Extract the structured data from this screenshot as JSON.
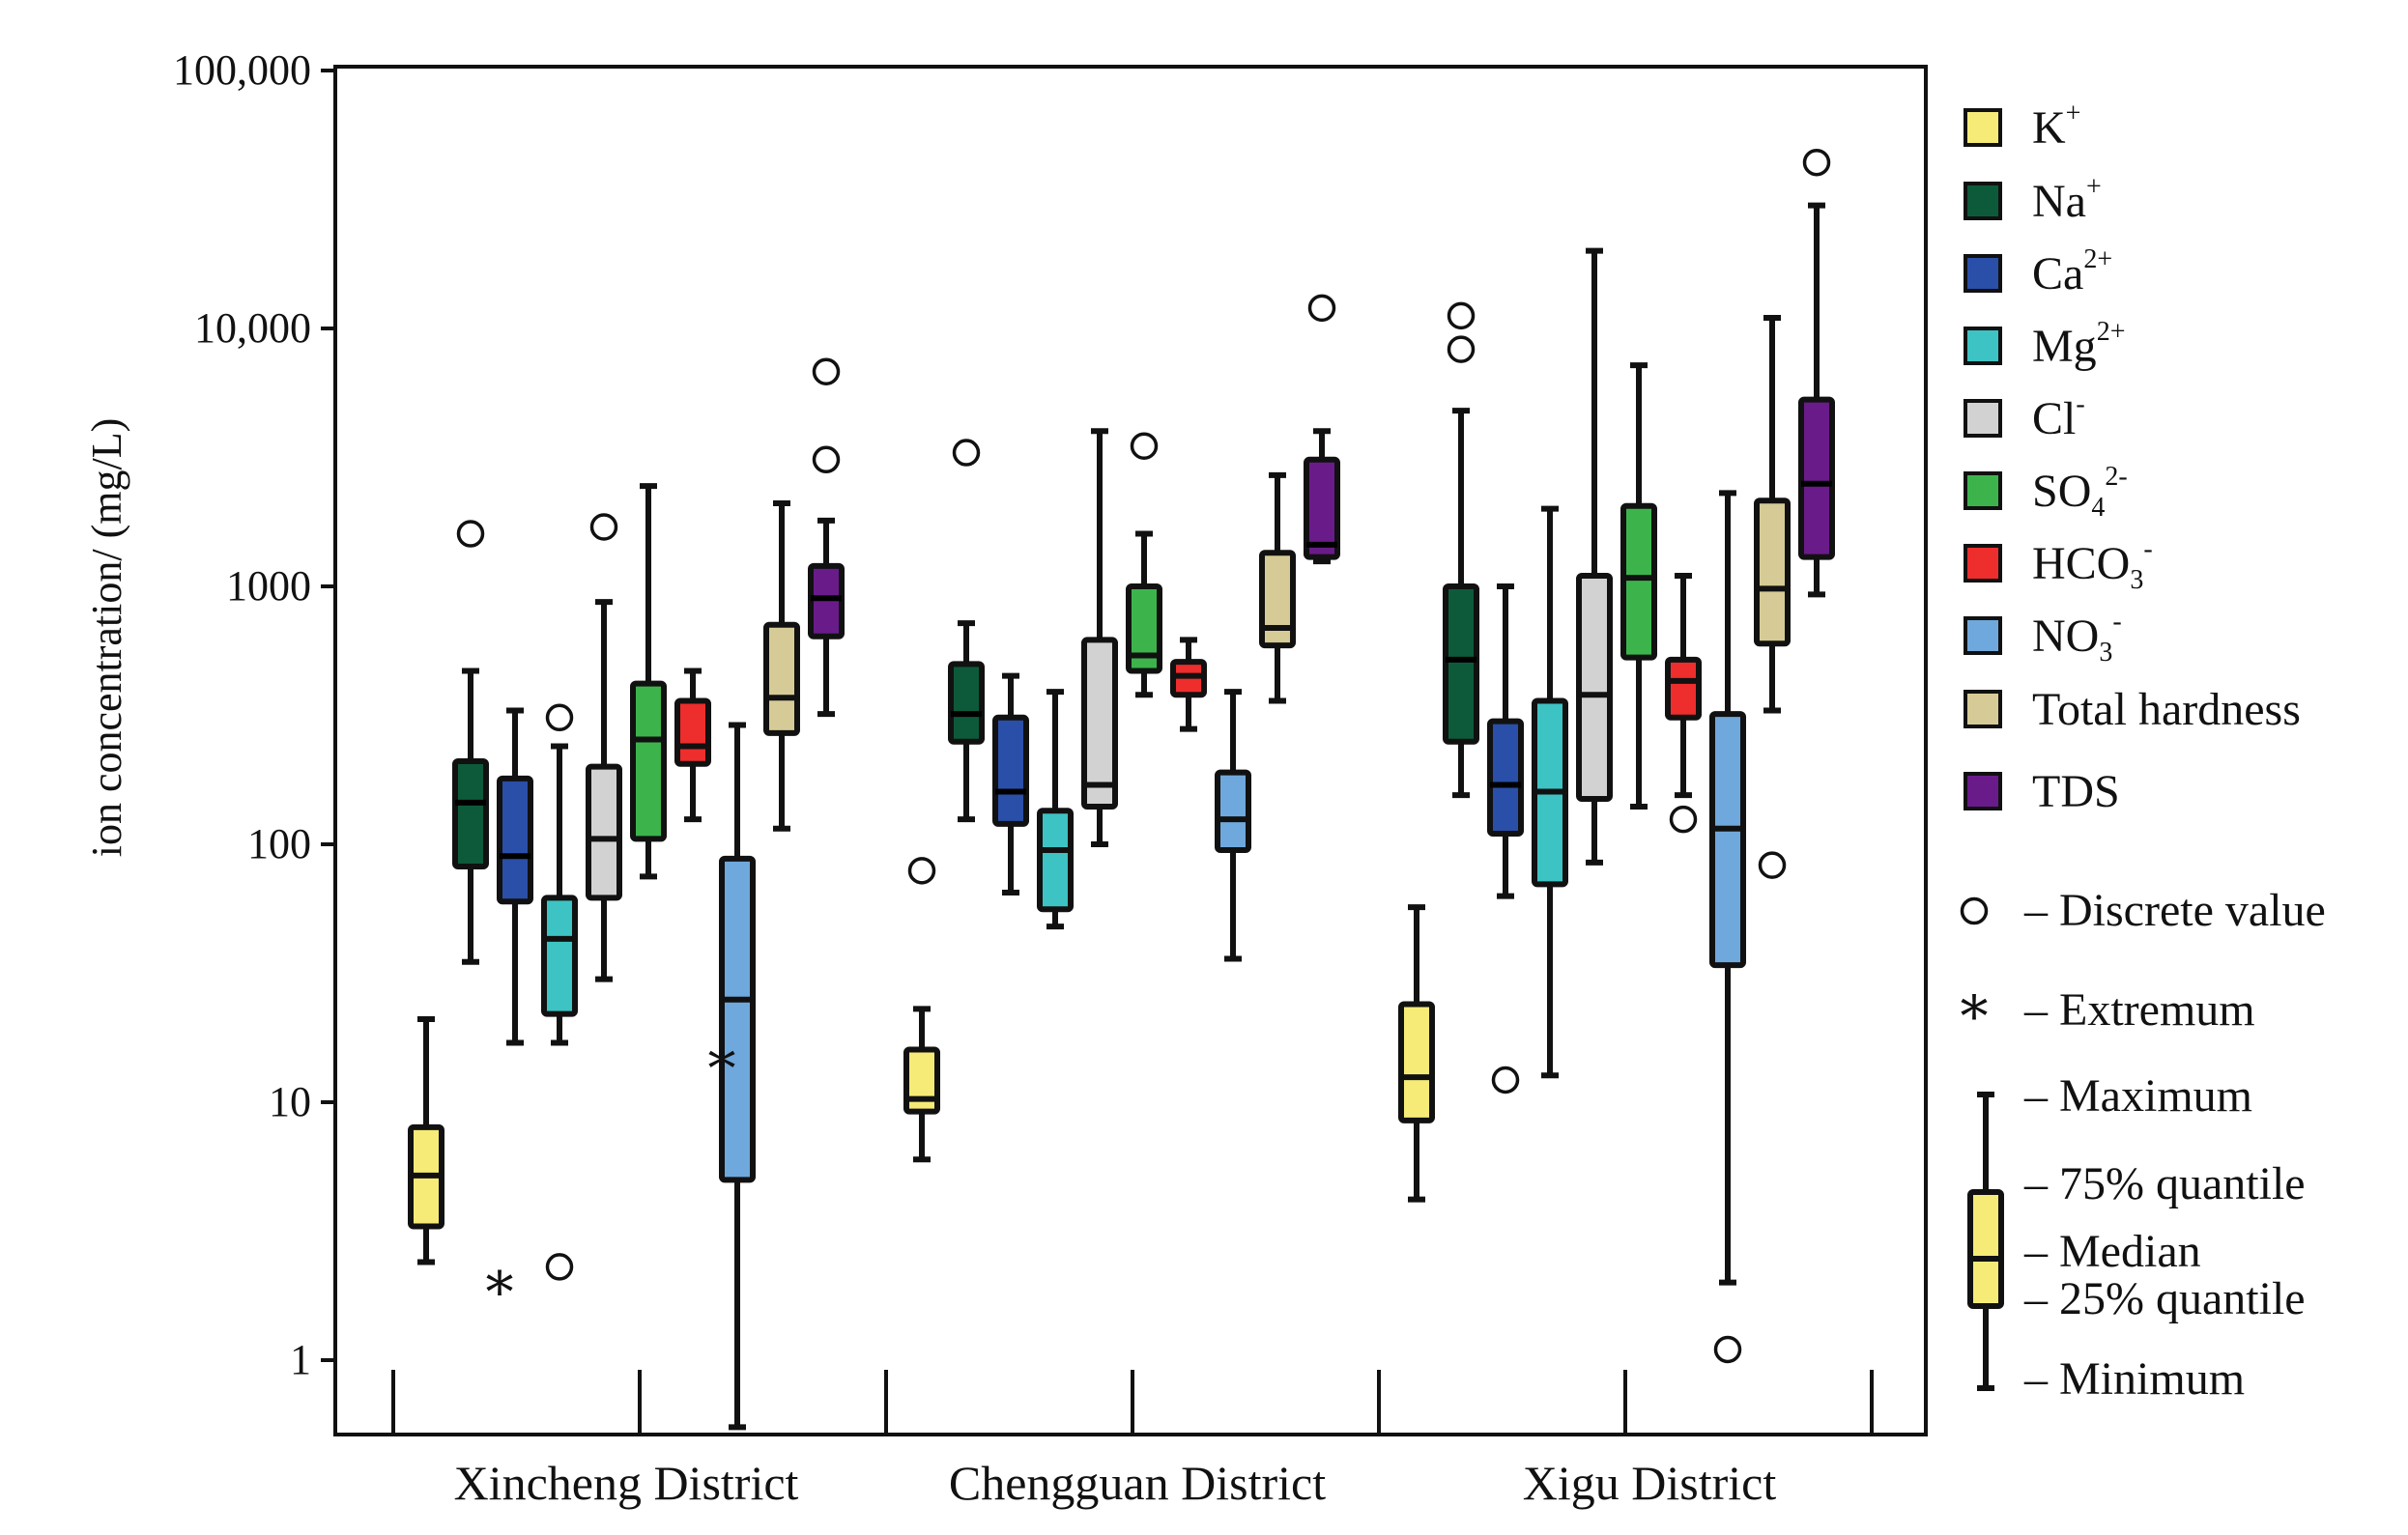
{
  "chart_data": {
    "type": "boxplot",
    "scale": "log",
    "ylabel": "ion concentration/ (mg/L)",
    "ylim": [
      0.5,
      110000
    ],
    "yticks": [
      {
        "value": 1,
        "label": "1"
      },
      {
        "value": 10,
        "label": "10"
      },
      {
        "value": 100,
        "label": "100"
      },
      {
        "value": 1000,
        "label": "1000"
      },
      {
        "value": 10000,
        "label": "10,000"
      },
      {
        "value": 100000,
        "label": "100,000"
      }
    ],
    "groups": [
      "Xincheng District",
      "Chengguan District",
      "Xigu District"
    ],
    "series": [
      {
        "name": "K+",
        "base": "K",
        "sup": "+",
        "sub": "",
        "color": "#F6EB76"
      },
      {
        "name": "Na+",
        "base": "Na",
        "sup": "+",
        "sub": "",
        "color": "#0D5A3A"
      },
      {
        "name": "Ca2+",
        "base": "Ca",
        "sup": "2+",
        "sub": "",
        "color": "#2A4FA8"
      },
      {
        "name": "Mg2+",
        "base": "Mg",
        "sup": "2+",
        "sub": "",
        "color": "#3DC3C3"
      },
      {
        "name": "Cl-",
        "base": "Cl",
        "sup": "-",
        "sub": "",
        "color": "#D2D2D2"
      },
      {
        "name": "SO42-",
        "base": "SO",
        "sup": "2-",
        "sub": "4",
        "color": "#3CB44B"
      },
      {
        "name": "HCO3-",
        "base": "HCO",
        "sup": "-",
        "sub": "3",
        "color": "#EE2D2D"
      },
      {
        "name": "NO3-",
        "base": "NO",
        "sup": "-",
        "sub": "3",
        "color": "#6FA8DC"
      },
      {
        "name": "Total hardness",
        "base": "Total hardness",
        "sup": "",
        "sub": "",
        "color": "#D6CB96"
      },
      {
        "name": "TDS",
        "base": "TDS",
        "sup": "",
        "sub": "",
        "color": "#6A1B8A"
      }
    ],
    "boxes": [
      [
        {
          "min": 2.4,
          "q1": 3.3,
          "median": 5.2,
          "q3": 8,
          "max": 21,
          "outliers": [],
          "extrema": []
        },
        {
          "min": 35,
          "q1": 82,
          "median": 145,
          "q3": 210,
          "max": 470,
          "outliers": [
            1600
          ],
          "extrema": []
        },
        {
          "min": 17,
          "q1": 60,
          "median": 90,
          "q3": 180,
          "max": 330,
          "outliers": [],
          "extrema": [
            1.9
          ]
        },
        {
          "min": 17,
          "q1": 22,
          "median": 43,
          "q3": 62,
          "max": 240,
          "outliers": [
            310,
            2.3
          ],
          "extrema": []
        },
        {
          "min": 30,
          "q1": 62,
          "median": 105,
          "q3": 200,
          "max": 870,
          "outliers": [
            1700
          ],
          "extrema": []
        },
        {
          "min": 75,
          "q1": 105,
          "median": 255,
          "q3": 420,
          "max": 2450,
          "outliers": [],
          "extrema": []
        },
        {
          "min": 125,
          "q1": 205,
          "median": 240,
          "q3": 360,
          "max": 470,
          "outliers": [],
          "extrema": []
        },
        {
          "min": 0.55,
          "q1": 5,
          "median": 25,
          "q3": 88,
          "max": 290,
          "outliers": [],
          "extrema": [
            14
          ]
        },
        {
          "min": 115,
          "q1": 270,
          "median": 370,
          "q3": 710,
          "max": 2100,
          "outliers": [],
          "extrema": []
        },
        {
          "min": 320,
          "q1": 640,
          "median": 900,
          "q3": 1200,
          "max": 1800,
          "outliers": [
            3100,
            6800
          ],
          "extrema": []
        }
      ],
      [
        {
          "min": 6,
          "q1": 9.2,
          "median": 10.3,
          "q3": 16,
          "max": 23,
          "outliers": [
            79
          ],
          "extrema": []
        },
        {
          "min": 125,
          "q1": 250,
          "median": 320,
          "q3": 500,
          "max": 720,
          "outliers": [
            3300
          ],
          "extrema": []
        },
        {
          "min": 65,
          "q1": 120,
          "median": 160,
          "q3": 310,
          "max": 450,
          "outliers": [],
          "extrema": []
        },
        {
          "min": 48,
          "q1": 56,
          "median": 95,
          "q3": 135,
          "max": 390,
          "outliers": [],
          "extrema": []
        },
        {
          "min": 100,
          "q1": 140,
          "median": 170,
          "q3": 620,
          "max": 4000,
          "outliers": [],
          "extrema": []
        },
        {
          "min": 380,
          "q1": 470,
          "median": 540,
          "q3": 1000,
          "max": 1600,
          "outliers": [
            3500
          ],
          "extrema": []
        },
        {
          "min": 280,
          "q1": 380,
          "median": 450,
          "q3": 510,
          "max": 620,
          "outliers": [],
          "extrema": []
        },
        {
          "min": 36,
          "q1": 95,
          "median": 125,
          "q3": 190,
          "max": 390,
          "outliers": [],
          "extrema": []
        },
        {
          "min": 360,
          "q1": 590,
          "median": 690,
          "q3": 1350,
          "max": 2700,
          "outliers": [],
          "extrema": []
        },
        {
          "min": 1250,
          "q1": 1300,
          "median": 1450,
          "q3": 3100,
          "max": 4000,
          "outliers": [
            12000
          ],
          "extrema": []
        }
      ],
      [
        {
          "min": 4.2,
          "q1": 8.5,
          "median": 12.5,
          "q3": 24,
          "max": 57,
          "outliers": [],
          "extrema": []
        },
        {
          "min": 155,
          "q1": 250,
          "median": 520,
          "q3": 1000,
          "max": 4800,
          "outliers": [
            8300,
            11200
          ],
          "extrema": []
        },
        {
          "min": 63,
          "q1": 110,
          "median": 170,
          "q3": 300,
          "max": 1000,
          "outliers": [
            12.2
          ],
          "extrema": []
        },
        {
          "min": 12.7,
          "q1": 70,
          "median": 160,
          "q3": 360,
          "max": 2000,
          "outliers": [],
          "extrema": []
        },
        {
          "min": 85,
          "q1": 150,
          "median": 380,
          "q3": 1100,
          "max": 20000,
          "outliers": [],
          "extrema": []
        },
        {
          "min": 140,
          "q1": 530,
          "median": 1080,
          "q3": 2050,
          "max": 7200,
          "outliers": [],
          "extrema": []
        },
        {
          "min": 155,
          "q1": 310,
          "median": 430,
          "q3": 520,
          "max": 1100,
          "outliers": [
            125
          ],
          "extrema": []
        },
        {
          "min": 2,
          "q1": 34,
          "median": 115,
          "q3": 320,
          "max": 2300,
          "outliers": [
            1.1
          ],
          "extrema": []
        },
        {
          "min": 330,
          "q1": 600,
          "median": 980,
          "q3": 2150,
          "max": 11000,
          "outliers": [
            83
          ],
          "extrema": []
        },
        {
          "min": 930,
          "q1": 1300,
          "median": 2500,
          "q3": 5300,
          "max": 30000,
          "outliers": [
            44000
          ],
          "extrema": []
        }
      ]
    ],
    "legend": {
      "discrete_label": "– Discrete value",
      "extremum_label": "– Extremum",
      "maximum_label": "– Maximum",
      "q75_label": "– 75% quantile",
      "median_label": "– Median",
      "q25_label": "– 25% quantile",
      "minimum_label": "– Minimum",
      "example_color": "#F6EB76"
    }
  }
}
